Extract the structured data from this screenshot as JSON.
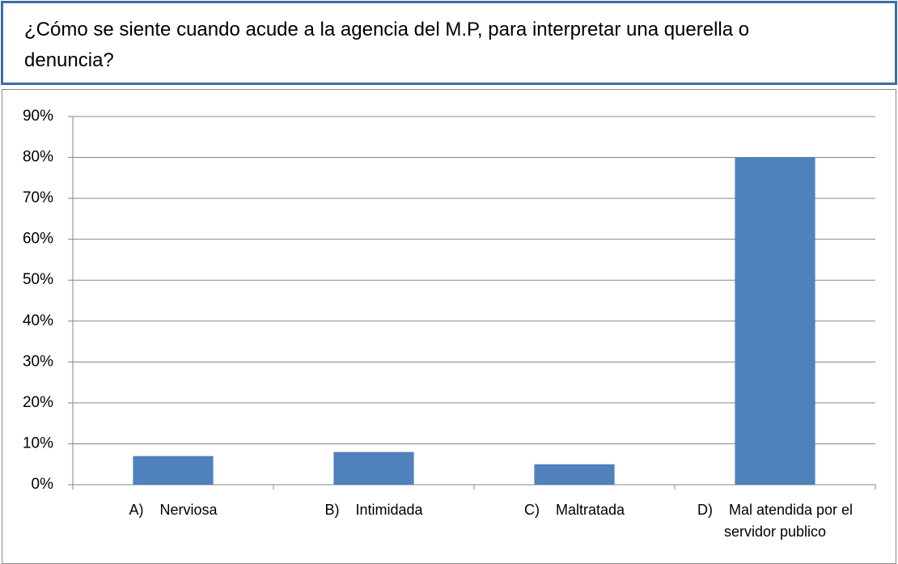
{
  "chart_data": {
    "type": "bar",
    "title": "¿Cómo se siente cuando acude a la agencia del M.P, para interpretar una querella o denuncia?",
    "categories": [
      "A)    Nerviosa",
      "B)    Intimidada",
      "C)    Maltratada",
      "D)    Mal atendida por el servidor publico"
    ],
    "values": [
      7,
      8,
      5,
      80
    ],
    "color": "#4f81bd",
    "ylim": [
      0,
      90
    ],
    "yticks": [
      {
        "value": 0,
        "label": "0%"
      },
      {
        "value": 10,
        "label": "10%"
      },
      {
        "value": 20,
        "label": "20%"
      },
      {
        "value": 30,
        "label": "30%"
      },
      {
        "value": 40,
        "label": "40%"
      },
      {
        "value": 50,
        "label": "50%"
      },
      {
        "value": 60,
        "label": "60%"
      },
      {
        "value": 70,
        "label": "70%"
      },
      {
        "value": 80,
        "label": "80%"
      },
      {
        "value": 90,
        "label": "90%"
      }
    ],
    "grid": true
  }
}
